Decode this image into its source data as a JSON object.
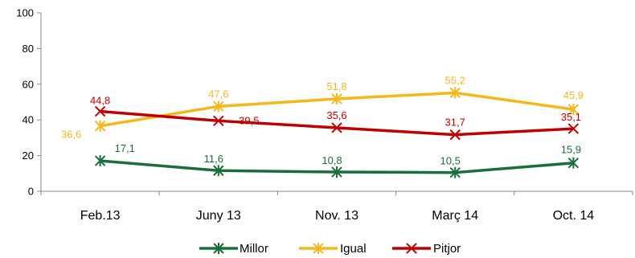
{
  "chart_data": {
    "type": "line",
    "categories": [
      "Feb.13",
      "Juny 13",
      "Nov. 13",
      "Març 14",
      "Oct. 14"
    ],
    "ylim": [
      0,
      100
    ],
    "yticks": [
      0,
      20,
      40,
      60,
      80,
      100
    ],
    "grid": false,
    "legend_position": "bottom",
    "series": [
      {
        "name": "Millor",
        "color": "#1a6e3a",
        "marker": "star",
        "values": [
          17.1,
          11.6,
          10.8,
          10.5,
          15.9
        ],
        "labels": [
          "17,1",
          "11,6",
          "10,8",
          "10,5",
          "15,9"
        ]
      },
      {
        "name": "Igual",
        "color": "#f5b81c",
        "marker": "star",
        "values": [
          36.6,
          47.6,
          51.8,
          55.2,
          45.9
        ],
        "labels": [
          "36,6",
          "47,6",
          "51,8",
          "55,2",
          "45,9"
        ]
      },
      {
        "name": "Pitjor",
        "color": "#c00000",
        "marker": "x",
        "values": [
          44.8,
          39.5,
          35.6,
          31.7,
          35.1
        ],
        "labels": [
          "44,8",
          "39,5",
          "35,6",
          "31,7",
          "35,1"
        ]
      }
    ]
  }
}
